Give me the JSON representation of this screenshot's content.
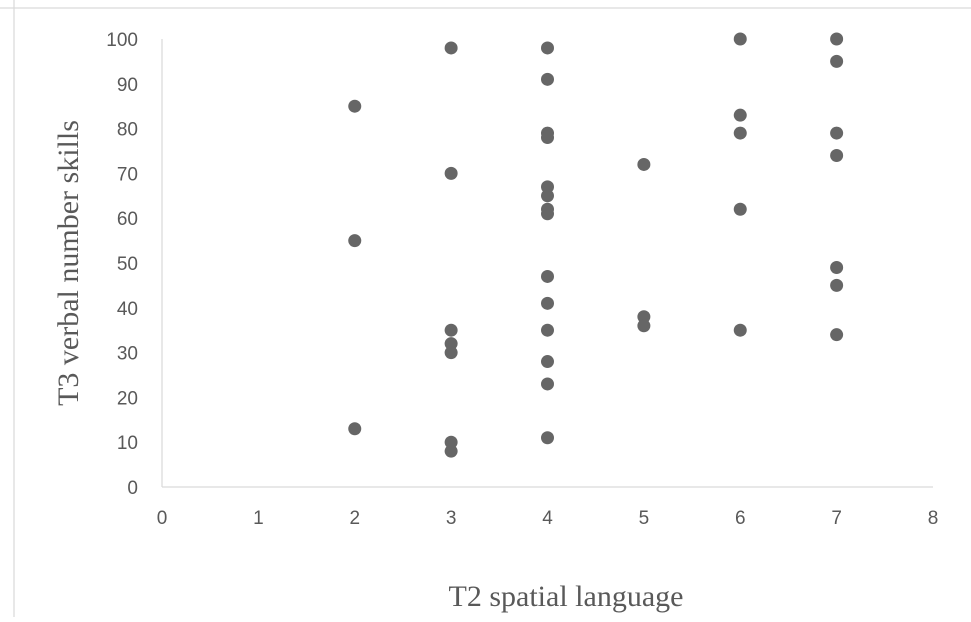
{
  "chart_data": {
    "type": "scatter",
    "title": "",
    "xlabel": "T2 spatial language",
    "ylabel": "T3 verbal number skills",
    "xlim": [
      0,
      8
    ],
    "ylim": [
      0,
      100
    ],
    "x_ticks": [
      0,
      1,
      2,
      3,
      4,
      5,
      6,
      7,
      8
    ],
    "y_ticks": [
      0,
      10,
      20,
      30,
      40,
      50,
      60,
      70,
      80,
      90,
      100
    ],
    "grid": false,
    "legend": "none",
    "marker_color": "#666666",
    "axis_color": "#d9d9d9",
    "points": [
      {
        "x": 2,
        "y": 85
      },
      {
        "x": 2,
        "y": 55
      },
      {
        "x": 2,
        "y": 13
      },
      {
        "x": 3,
        "y": 98
      },
      {
        "x": 3,
        "y": 70
      },
      {
        "x": 3,
        "y": 35
      },
      {
        "x": 3,
        "y": 32
      },
      {
        "x": 3,
        "y": 30
      },
      {
        "x": 3,
        "y": 10
      },
      {
        "x": 3,
        "y": 8
      },
      {
        "x": 4,
        "y": 98
      },
      {
        "x": 4,
        "y": 91
      },
      {
        "x": 4,
        "y": 79
      },
      {
        "x": 4,
        "y": 78
      },
      {
        "x": 4,
        "y": 67
      },
      {
        "x": 4,
        "y": 65
      },
      {
        "x": 4,
        "y": 62
      },
      {
        "x": 4,
        "y": 61
      },
      {
        "x": 4,
        "y": 47
      },
      {
        "x": 4,
        "y": 41
      },
      {
        "x": 4,
        "y": 35
      },
      {
        "x": 4,
        "y": 28
      },
      {
        "x": 4,
        "y": 23
      },
      {
        "x": 4,
        "y": 11
      },
      {
        "x": 5,
        "y": 72
      },
      {
        "x": 5,
        "y": 38
      },
      {
        "x": 5,
        "y": 36
      },
      {
        "x": 6,
        "y": 100
      },
      {
        "x": 6,
        "y": 83
      },
      {
        "x": 6,
        "y": 79
      },
      {
        "x": 6,
        "y": 62
      },
      {
        "x": 6,
        "y": 35
      },
      {
        "x": 7,
        "y": 100
      },
      {
        "x": 7,
        "y": 95
      },
      {
        "x": 7,
        "y": 79
      },
      {
        "x": 7,
        "y": 74
      },
      {
        "x": 7,
        "y": 49
      },
      {
        "x": 7,
        "y": 45
      },
      {
        "x": 7,
        "y": 34
      }
    ]
  }
}
